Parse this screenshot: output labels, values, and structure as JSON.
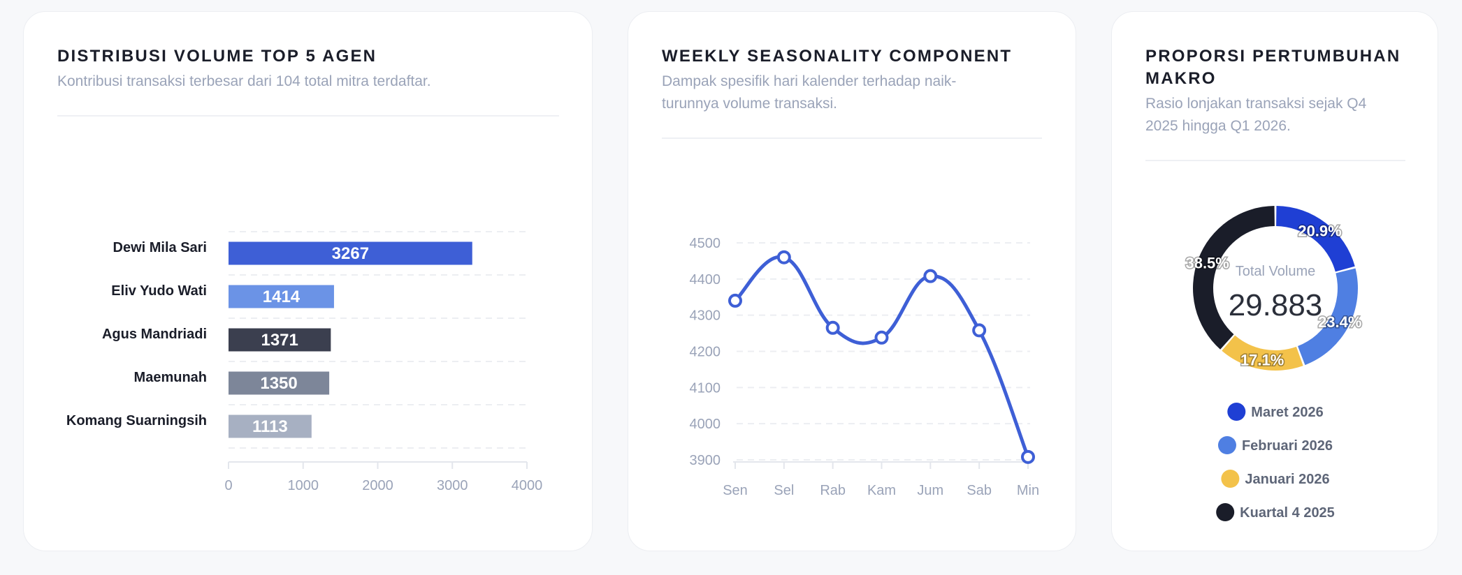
{
  "cards": {
    "agents": {
      "title": "DISTRIBUSI VOLUME TOP 5 AGEN",
      "subtitle": "Kontribusi transaksi terbesar dari 104 total mitra terdaftar."
    },
    "seasonality": {
      "title": "WEEKLY SEASONALITY COMPONENT",
      "subtitle_line1": "Dampak spesifik hari kalender terhadap naik-",
      "subtitle_line2": "turunnya volume transaksi."
    },
    "growth": {
      "title_line1": "PROPORSI PERTUMBUHAN",
      "title_line2": "MAKRO",
      "subtitle_line1": "Rasio lonjakan transaksi sejak Q4",
      "subtitle_line2": "2025 hingga Q1 2026.",
      "center_label": "Total Volume",
      "center_value": "29.883"
    }
  },
  "chart_data": [
    {
      "type": "bar",
      "orientation": "horizontal",
      "categories": [
        "Dewi Mila Sari",
        "Eliv Yudo Wati",
        "Agus Mandriadi",
        "Maemunah",
        "Komang Suarningsih"
      ],
      "values": [
        3267,
        1414,
        1371,
        1350,
        1113
      ],
      "value_labels": [
        "3267",
        "1414",
        "1371",
        "1350",
        "1113"
      ],
      "bar_colors": [
        "#3e5fd6",
        "#6b93e6",
        "#3b3f4f",
        "#7d8699",
        "#a7b0c2"
      ],
      "xlim": [
        0,
        4000
      ],
      "xticks": [
        0,
        1000,
        2000,
        3000,
        4000
      ],
      "xtick_labels": [
        "0",
        "1000",
        "2000",
        "3000",
        "4000"
      ],
      "grid": true
    },
    {
      "type": "line",
      "x": [
        "Sen",
        "Sel",
        "Rab",
        "Kam",
        "Jum",
        "Sab",
        "Min"
      ],
      "values": [
        4340,
        4460,
        4265,
        4238,
        4408,
        4258,
        3908
      ],
      "ylim": [
        3900,
        4500
      ],
      "yticks": [
        3900,
        4000,
        4100,
        4200,
        4300,
        4400,
        4500
      ],
      "ytick_labels": [
        "3900",
        "4000",
        "4100",
        "4200",
        "4300",
        "4400",
        "4500"
      ],
      "color": "#3e5fd6",
      "smooth": true,
      "grid": true
    },
    {
      "type": "pie",
      "donut": true,
      "labels": [
        "Maret 2026",
        "Februari 2026",
        "Januari 2026",
        "Kuartal 4 2025"
      ],
      "values": [
        20.9,
        23.4,
        17.1,
        38.5
      ],
      "value_labels": [
        "20.9%",
        "23.4%",
        "17.1%",
        "38.5%"
      ],
      "colors": [
        "#1f3fd4",
        "#4f7fe2",
        "#f3c24a",
        "#1a1d29"
      ],
      "legend": "bottom"
    }
  ]
}
